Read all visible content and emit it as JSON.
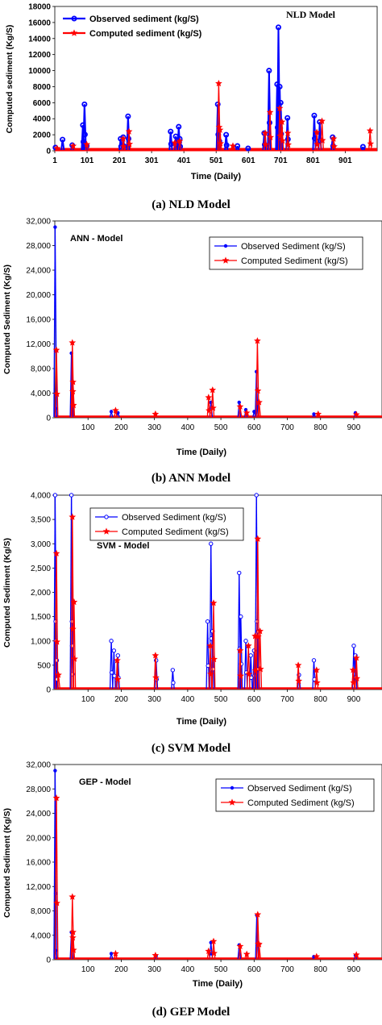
{
  "figure": {
    "captions": [
      {
        "letter": "(a)",
        "text": "NLD Model"
      },
      {
        "letter": "(b)",
        "text": "ANN Model"
      },
      {
        "letter": "(c)",
        "text": "SVM Model"
      },
      {
        "letter": "(d)",
        "text": "GEP Model"
      }
    ]
  },
  "chart_data": [
    {
      "type": "line",
      "title": "NLD Model",
      "xlabel": "Time (Daily)",
      "ylabel": "Computed sediment (Kg/S)",
      "xlim": [
        1,
        1000
      ],
      "ylim": [
        0,
        18000
      ],
      "x_ticks": [
        1,
        101,
        201,
        301,
        401,
        501,
        601,
        701,
        801,
        901
      ],
      "y_ticks": [
        0,
        2000,
        4000,
        6000,
        8000,
        10000,
        12000,
        14000,
        16000,
        18000
      ],
      "y_tick_labels": [
        "0",
        "2000",
        "4000",
        "6000",
        "8000",
        "10000",
        "12000",
        "14000",
        "16000",
        "18000"
      ],
      "grid": false,
      "legend_position": "top-left",
      "series": [
        {
          "name": "Observed sediment (kg/S)",
          "color": "#0000ff",
          "marker": "circle",
          "x": [
            3,
            25,
            55,
            88,
            93,
            100,
            205,
            213,
            228,
            360,
            376,
            385,
            388,
            506,
            511,
            532,
            567,
            600,
            650,
            665,
            690,
            694,
            698,
            701,
            722,
            805,
            822,
            862,
            956
          ],
          "y": [
            400,
            1400,
            700,
            3200,
            5800,
            600,
            1500,
            1700,
            4300,
            2400,
            1800,
            3000,
            1500,
            5800,
            1200,
            2000,
            600,
            300,
            2200,
            10000,
            8300,
            15400,
            8000,
            6000,
            4100,
            4400,
            3600,
            1700,
            500
          ]
        },
        {
          "name": "Computed sediment (kg/S)",
          "color": "#ff0000",
          "marker": "star",
          "x": [
            5,
            55,
            97,
            210,
            228,
            370,
            385,
            506,
            510,
            550,
            650,
            665,
            695,
            702,
            720,
            810,
            826,
            862,
            975
          ],
          "y": [
            300,
            600,
            800,
            1500,
            2400,
            1000,
            1200,
            8400,
            2600,
            600,
            2200,
            4800,
            5300,
            3600,
            2200,
            2300,
            3700,
            1500,
            2500
          ]
        }
      ]
    },
    {
      "type": "line",
      "title": "ANN - Model",
      "xlabel": "Time (Daily)",
      "ylabel": "Computed Sediment (Kg/S)",
      "xlim": [
        0,
        985
      ],
      "ylim": [
        0,
        32000
      ],
      "x_ticks": [
        100,
        200,
        300,
        400,
        500,
        600,
        700,
        800,
        900
      ],
      "y_ticks": [
        0,
        4000,
        8000,
        12000,
        16000,
        20000,
        24000,
        28000,
        32000
      ],
      "y_tick_labels": [
        "0",
        "4,000",
        "8,000",
        "12,000",
        "16,000",
        "20,000",
        "24,000",
        "28,000",
        "32,000"
      ],
      "grid": false,
      "legend_position": "top-right",
      "series": [
        {
          "name": "Observed Sediment (kg/S)",
          "color": "#0000ff",
          "marker": "dot",
          "x": [
            1,
            3,
            50,
            52,
            170,
            190,
            470,
            555,
            575,
            600,
            607,
            610,
            780,
            905
          ],
          "y": [
            31000,
            1500,
            10500,
            4500,
            1000,
            800,
            2500,
            2500,
            1300,
            1000,
            7500,
            2000,
            600,
            800
          ]
        },
        {
          "name": "Computed Sediment (kg/S)",
          "color": "#ff0000",
          "marker": "star",
          "x": [
            2,
            50,
            52,
            180,
            300,
            460,
            472,
            555,
            575,
            607,
            612,
            790,
            905
          ],
          "y": [
            11000,
            12200,
            5800,
            1200,
            600,
            3300,
            4500,
            1800,
            800,
            12500,
            2500,
            600,
            500
          ]
        }
      ]
    },
    {
      "type": "line",
      "title": "SVM - Model",
      "xlabel": "Time (Daily)",
      "ylabel": "Computed Sediment (Kg/S)",
      "xlim": [
        0,
        985
      ],
      "ylim": [
        0,
        4000
      ],
      "x_ticks": [
        100,
        200,
        300,
        400,
        500,
        600,
        700,
        800,
        900
      ],
      "y_ticks": [
        0,
        500,
        1000,
        1500,
        2000,
        2500,
        3000,
        3500,
        4000
      ],
      "y_tick_labels": [
        "0",
        "500",
        "1,000",
        "1,500",
        "2,000",
        "2,500",
        "3,000",
        "3,500",
        "4,000"
      ],
      "grid": false,
      "legend_position": "top-right",
      "series": [
        {
          "name": "Observed Sediment (kg/S)",
          "color": "#0000ff",
          "marker": "ring",
          "x": [
            1,
            3,
            6,
            50,
            52,
            170,
            178,
            190,
            305,
            355,
            460,
            470,
            475,
            555,
            560,
            575,
            590,
            600,
            607,
            612,
            735,
            780,
            900,
            905
          ],
          "y": [
            4000,
            1000,
            600,
            4000,
            900,
            1000,
            800,
            700,
            600,
            400,
            1400,
            3000,
            1200,
            2400,
            1500,
            1000,
            700,
            800,
            4000,
            1200,
            300,
            600,
            900,
            700
          ]
        },
        {
          "name": "Computed Sediment (kg/S)",
          "color": "#ff0000",
          "marker": "star",
          "x": [
            2,
            8,
            50,
            55,
            185,
            300,
            465,
            475,
            555,
            580,
            600,
            608,
            615,
            730,
            785,
            895,
            905
          ],
          "y": [
            2800,
            300,
            3550,
            1800,
            600,
            700,
            900,
            1780,
            800,
            900,
            1100,
            3100,
            1200,
            500,
            400,
            400,
            650
          ]
        }
      ]
    },
    {
      "type": "line",
      "title": "GEP - Model",
      "xlabel": "Time (Daily)",
      "ylabel": "Computed Sediment (Kg/S)",
      "xlim": [
        0,
        985
      ],
      "ylim": [
        0,
        32000
      ],
      "x_ticks": [
        100,
        200,
        300,
        400,
        500,
        600,
        700,
        800,
        900
      ],
      "y_ticks": [
        0,
        4000,
        8000,
        12000,
        16000,
        20000,
        24000,
        28000,
        32000
      ],
      "y_tick_labels": [
        "0",
        "4,000",
        "8,000",
        "12,000",
        "16,000",
        "20,000",
        "24,000",
        "28,000",
        "32,000"
      ],
      "grid": false,
      "legend_position": "top-right",
      "series": [
        {
          "name": "Observed Sediment (kg/S)",
          "color": "#0000ff",
          "marker": "dot",
          "x": [
            1,
            3,
            50,
            170,
            305,
            470,
            555,
            608,
            780,
            905
          ],
          "y": [
            31000,
            1500,
            4500,
            1000,
            600,
            2800,
            2400,
            7300,
            500,
            700
          ]
        },
        {
          "name": "Computed Sediment (kg/S)",
          "color": "#ff0000",
          "marker": "star",
          "x": [
            2,
            50,
            52,
            180,
            300,
            460,
            475,
            555,
            575,
            608,
            612,
            785,
            905
          ],
          "y": [
            26500,
            10300,
            4500,
            1000,
            700,
            1400,
            3000,
            2200,
            900,
            7400,
            2500,
            500,
            800
          ]
        }
      ]
    }
  ]
}
